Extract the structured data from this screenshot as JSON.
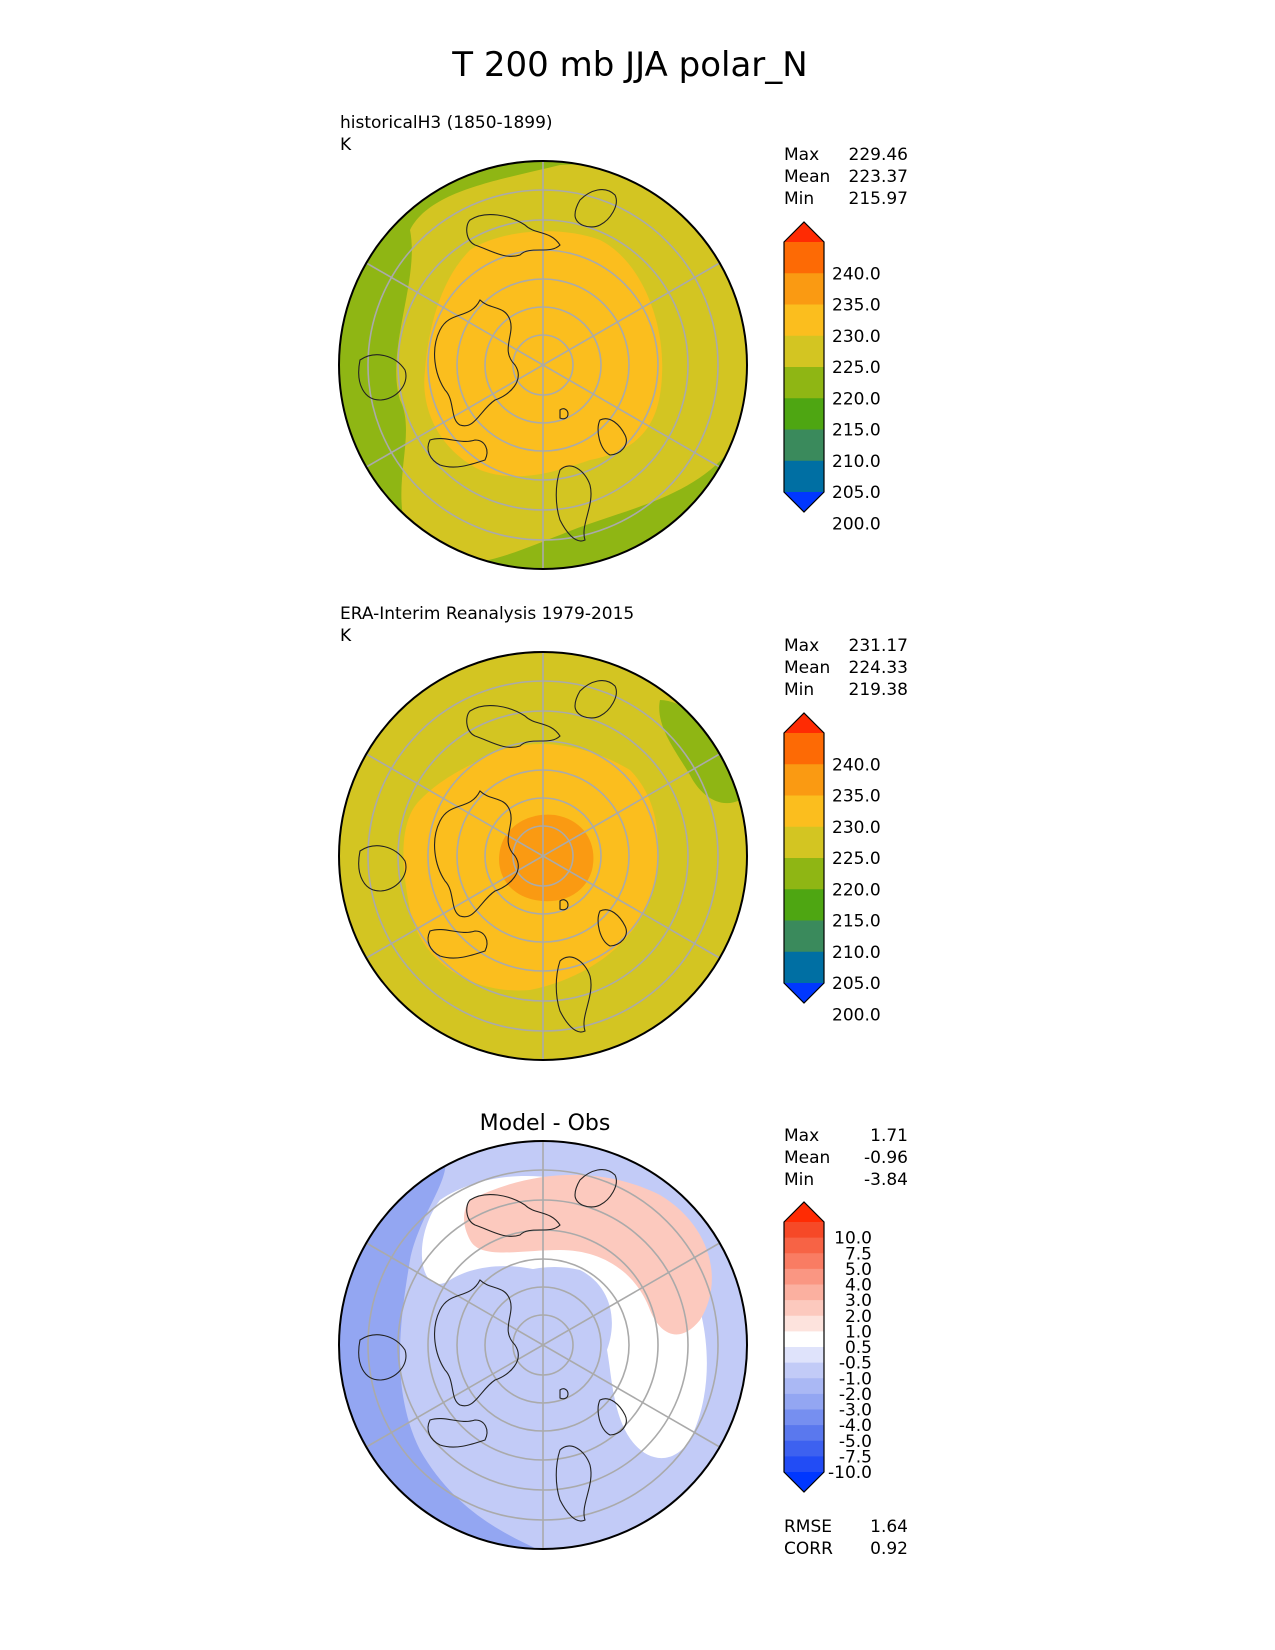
{
  "figure": {
    "title": "T 200 mb JJA polar_N",
    "colors": {
      "main_levels": [
        "#0037ff",
        "#006fa3",
        "#3a8a5c",
        "#4ea612",
        "#8fb614",
        "#d3c522",
        "#fbbe1e",
        "#fa9a12",
        "#fd6a05",
        "#ff2b03"
      ],
      "diff_levels": [
        "#0037ff",
        "#224cf5",
        "#3d61f0",
        "#5a78ee",
        "#768ff0",
        "#93a6f2",
        "#aab8f4",
        "#c2cbf7",
        "#dfe3fb",
        "#ffffff",
        "#fde3dd",
        "#fcc9be",
        "#fbb0a0",
        "#fa9682",
        "#f97c63",
        "#f76345",
        "#f64927",
        "#ff2b03"
      ],
      "coast": "#222222",
      "grid": "#aaaaaa"
    }
  },
  "chart_data": [
    {
      "type": "heatmap",
      "projection": "north-polar-stereographic",
      "label_line1": "historicalH3 (1850-1899)",
      "label_line2": "K",
      "title": "",
      "stats": {
        "max_label": "Max",
        "max": "229.46",
        "mean_label": "Mean",
        "mean": "223.37",
        "min_label": "Min",
        "min": "215.97"
      },
      "colorbar": {
        "ticks": [
          "240.0",
          "235.0",
          "230.0",
          "225.0",
          "220.0",
          "215.0",
          "210.0",
          "205.0",
          "200.0"
        ],
        "extend": "both"
      },
      "fields": [
        {
          "value": 215,
          "color_index": 4,
          "shape": "outer-ring"
        },
        {
          "value": 220,
          "color_index": 5,
          "shape": "middle"
        },
        {
          "value": 226,
          "color_index": 6,
          "shape": "central-blob"
        }
      ]
    },
    {
      "type": "heatmap",
      "projection": "north-polar-stereographic",
      "label_line1": "ERA-Interim Reanalysis 1979-2015",
      "label_line2": "K",
      "title": "",
      "stats": {
        "max_label": "Max",
        "max": "231.17",
        "mean_label": "Mean",
        "mean": "224.33",
        "min_label": "Min",
        "min": "219.38"
      },
      "colorbar": {
        "ticks": [
          "240.0",
          "235.0",
          "230.0",
          "225.0",
          "220.0",
          "215.0",
          "210.0",
          "205.0",
          "200.0"
        ],
        "extend": "both"
      },
      "fields": [
        {
          "value": 220,
          "color_index": 5,
          "shape": "disk"
        },
        {
          "value": 218,
          "color_index": 4,
          "shape": "patch-northeast"
        },
        {
          "value": 226,
          "color_index": 6,
          "shape": "central-blob"
        },
        {
          "value": 231,
          "color_index": 7,
          "shape": "pole-core"
        }
      ]
    },
    {
      "type": "heatmap",
      "projection": "north-polar-stereographic",
      "label_line1": "",
      "label_line2": "",
      "title": "Model - Obs",
      "stats": {
        "max_label": "Max",
        "max": "1.71",
        "mean_label": "Mean",
        "mean": "-0.96",
        "min_label": "Min",
        "min": "-3.84"
      },
      "extra_stats": {
        "rmse_label": "RMSE",
        "rmse": "1.64",
        "corr_label": "CORR",
        "corr": "0.92"
      },
      "colorbar": {
        "ticks": [
          "10.0",
          "7.5",
          "5.0",
          "4.0",
          "3.0",
          "2.0",
          "1.0",
          "0.5",
          "-0.5",
          "-1.0",
          "-2.0",
          "-3.0",
          "-4.0",
          "-5.0",
          "-7.5",
          "-10.0"
        ],
        "extend": "both"
      },
      "fields": [
        {
          "value": -1.5,
          "color_index": 7,
          "shape": "disk"
        },
        {
          "value": -3,
          "color_index": 5,
          "shape": "outer-arc-west"
        },
        {
          "value": 0,
          "color_index": 9,
          "shape": "white-band"
        },
        {
          "value": 1.5,
          "color_index": 11,
          "shape": "warm-arc-northeast"
        },
        {
          "value": -1,
          "color_index": 7,
          "shape": "pole-cool"
        }
      ]
    }
  ]
}
